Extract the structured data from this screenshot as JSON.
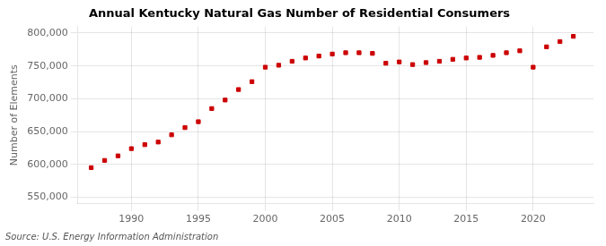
{
  "chart_data": {
    "type": "scatter",
    "title": "Annual Kentucky Natural Gas Number of Residential Consumers",
    "ylabel": "Number of Elements",
    "source": "Source: U.S. Energy Information Administration",
    "x": [
      1987,
      1988,
      1989,
      1990,
      1991,
      1992,
      1993,
      1994,
      1995,
      1996,
      1997,
      1998,
      1999,
      2000,
      2001,
      2002,
      2003,
      2004,
      2005,
      2006,
      2007,
      2008,
      2009,
      2010,
      2011,
      2012,
      2013,
      2014,
      2015,
      2016,
      2017,
      2018,
      2019,
      2020,
      2021,
      2022,
      2023
    ],
    "values": [
      595000,
      606000,
      613000,
      624000,
      630000,
      634000,
      645000,
      656000,
      665000,
      685000,
      698000,
      714000,
      726000,
      748000,
      751000,
      757000,
      762000,
      765000,
      768000,
      770000,
      770000,
      769000,
      754000,
      756000,
      752000,
      755000,
      757000,
      760000,
      762000,
      763000,
      766000,
      770000,
      773000,
      748000,
      779000,
      787000,
      795000
    ],
    "color": "#cc0000",
    "marker": "square",
    "xlim": [
      1986,
      2024.5
    ],
    "xticks": [
      1990,
      1995,
      2000,
      2005,
      2010,
      2015,
      2020
    ],
    "ylim": [
      540000,
      810000
    ],
    "yticks": [
      {
        "value": 550000,
        "label": "550,000"
      },
      {
        "value": 600000,
        "label": "600,000"
      },
      {
        "value": 650000,
        "label": "650,000"
      },
      {
        "value": 700000,
        "label": "700,000"
      },
      {
        "value": 750000,
        "label": "750,000"
      },
      {
        "value": 800000,
        "label": "800,000"
      }
    ],
    "grid": true
  }
}
